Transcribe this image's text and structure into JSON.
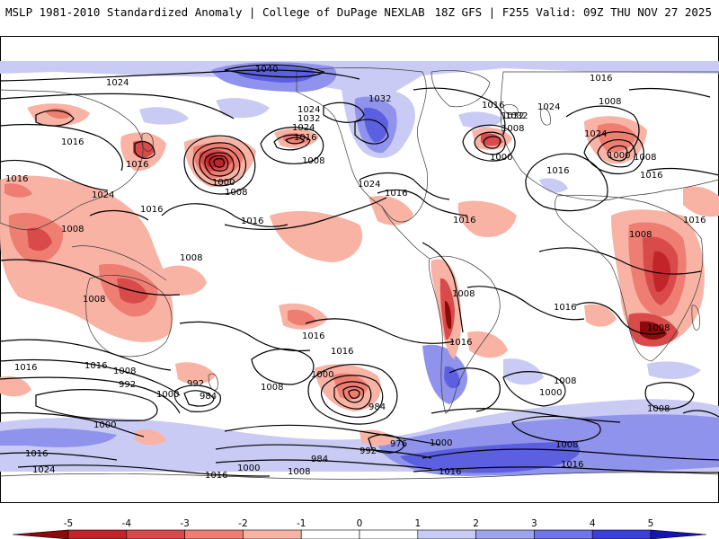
{
  "header": {
    "left": "MSLP 1981-2010 Standardized Anomaly | College of DuPage NEXLAB",
    "right": "18Z GFS | F255 Valid: 09Z THU NOV 27 2025"
  },
  "colorbar": {
    "ticks": [
      "-5",
      "-4",
      "-3",
      "-2",
      "-1",
      "0",
      "1",
      "2",
      "3",
      "4",
      "5"
    ],
    "colors": [
      "#8c0a0a",
      "#c2242a",
      "#d94a4a",
      "#ee7d72",
      "#f8b3a5",
      "#ffffff",
      "#ffffff",
      "#c9cbf4",
      "#9fa3ee",
      "#6f74e6",
      "#3b3fdc",
      "#1515b5"
    ]
  },
  "isobar_labels": [
    {
      "text": "1040"
    },
    {
      "text": "1024"
    },
    {
      "text": "1032"
    },
    {
      "text": "1024"
    },
    {
      "text": "1016"
    },
    {
      "text": "1032"
    },
    {
      "text": "1024"
    },
    {
      "text": "1016"
    },
    {
      "text": "1016"
    },
    {
      "text": "1008"
    },
    {
      "text": "1000"
    },
    {
      "text": "1008"
    },
    {
      "text": "1016"
    },
    {
      "text": "1024"
    },
    {
      "text": "1016"
    },
    {
      "text": "1008"
    },
    {
      "text": "1016"
    },
    {
      "text": "1024"
    },
    {
      "text": "1016"
    },
    {
      "text": "1008"
    },
    {
      "text": "1032"
    },
    {
      "text": "1016"
    },
    {
      "text": "1032"
    },
    {
      "text": "1024"
    },
    {
      "text": "1016"
    },
    {
      "text": "1008"
    },
    {
      "text": "1000"
    },
    {
      "text": "1016"
    },
    {
      "text": "1024"
    },
    {
      "text": "1016"
    },
    {
      "text": "1000"
    },
    {
      "text": "1008"
    },
    {
      "text": "1016"
    },
    {
      "text": "1008"
    },
    {
      "text": "1016"
    },
    {
      "text": "1008"
    },
    {
      "text": "1008"
    },
    {
      "text": "1008"
    },
    {
      "text": "1016"
    },
    {
      "text": "1016"
    },
    {
      "text": "1008"
    },
    {
      "text": "1016"
    },
    {
      "text": "1016"
    },
    {
      "text": "1008"
    },
    {
      "text": "992"
    },
    {
      "text": "1000"
    },
    {
      "text": "992"
    },
    {
      "text": "984"
    },
    {
      "text": "1016"
    },
    {
      "text": "1008"
    },
    {
      "text": "1000"
    },
    {
      "text": "984"
    },
    {
      "text": "1000"
    },
    {
      "text": "1008"
    },
    {
      "text": "1016"
    },
    {
      "text": "1000"
    },
    {
      "text": "1016"
    },
    {
      "text": "1024"
    },
    {
      "text": "1000"
    },
    {
      "text": "1008"
    },
    {
      "text": "1016"
    },
    {
      "text": "976"
    },
    {
      "text": "992"
    },
    {
      "text": "984"
    },
    {
      "text": "1000"
    },
    {
      "text": "1008"
    },
    {
      "text": "1016"
    },
    {
      "text": "1008"
    },
    {
      "text": "1016"
    }
  ]
}
